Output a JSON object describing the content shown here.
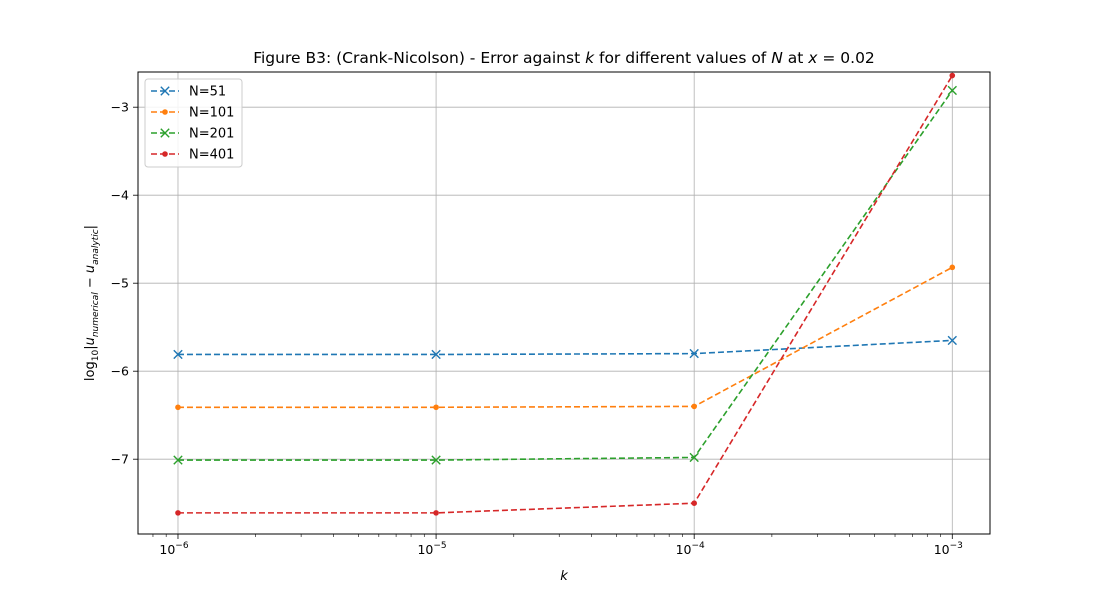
{
  "chart_data": {
    "type": "line",
    "title_parts": {
      "prefix": "Figure B3: (Crank-Nicolson) - Error against ",
      "var_k": "k",
      "middle": " for different values of ",
      "var_N": "N",
      "at": " at ",
      "var_x": "x",
      "suffix": " = 0.02"
    },
    "xlabel": "k",
    "ylabel_parts": {
      "log": "log",
      "base": "10",
      "open": "|u",
      "sub1": "numerical",
      "minus": " − u",
      "sub2": "analytic",
      "close": "|"
    },
    "xscale": "log",
    "xlim": [
      7e-07,
      0.0014
    ],
    "ylim": [
      -7.85,
      -2.6
    ],
    "grid": true,
    "legend_position": "top-left",
    "x": [
      1e-06,
      1e-05,
      0.0001,
      0.001
    ],
    "xticks": [
      {
        "value": 1e-06,
        "base": "10",
        "exp": "−6"
      },
      {
        "value": 1e-05,
        "base": "10",
        "exp": "−5"
      },
      {
        "value": 0.0001,
        "base": "10",
        "exp": "−4"
      },
      {
        "value": 0.001,
        "base": "10",
        "exp": "−3"
      }
    ],
    "yticks": [
      {
        "value": -3,
        "label": "−3"
      },
      {
        "value": -4,
        "label": "−4"
      },
      {
        "value": -5,
        "label": "−5"
      },
      {
        "value": -6,
        "label": "−6"
      },
      {
        "value": -7,
        "label": "−7"
      }
    ],
    "series": [
      {
        "name": "N=51",
        "color": "#1f77b4",
        "marker": "x",
        "values": [
          -5.81,
          -5.81,
          -5.8,
          -5.65
        ]
      },
      {
        "name": "N=101",
        "color": "#ff7f0e",
        "marker": "dot",
        "values": [
          -6.41,
          -6.41,
          -6.4,
          -4.82
        ]
      },
      {
        "name": "N=201",
        "color": "#2ca02c",
        "marker": "x",
        "values": [
          -7.01,
          -7.01,
          -6.98,
          -2.81
        ]
      },
      {
        "name": "N=401",
        "color": "#d62728",
        "marker": "dot",
        "values": [
          -7.61,
          -7.61,
          -7.5,
          -2.64
        ]
      }
    ]
  }
}
